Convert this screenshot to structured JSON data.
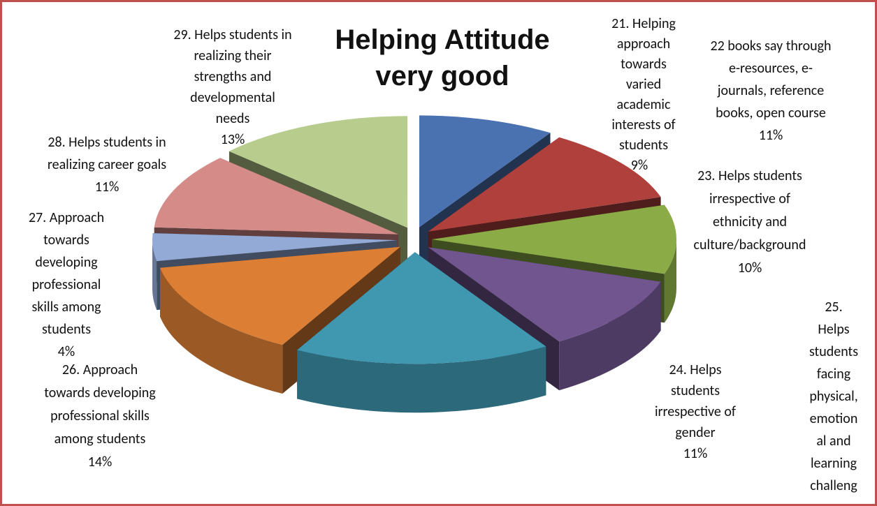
{
  "chart_data": {
    "type": "pie",
    "title": "Helping Attitude very good",
    "categories": [
      [
        "21. Helping",
        "approach",
        "towards",
        "varied",
        "academic",
        "interests of",
        "students"
      ],
      [
        "22 books say through",
        "e-resources, e-",
        "journals, reference",
        "books, open course"
      ],
      [
        "23. Helps students",
        "irrespective of",
        "ethnicity and",
        "culture/background"
      ],
      [
        "24. Helps",
        "students",
        "irrespective of",
        "gender"
      ],
      [
        "25.",
        "Helps",
        "students",
        "facing",
        "physical,",
        "emotion",
        "al and",
        "learning",
        "challeng"
      ],
      [
        "26. Approach",
        "towards developing",
        "professional skills",
        "among students"
      ],
      [
        "27. Approach",
        "towards",
        "developing",
        "professional",
        "skills among",
        "students"
      ],
      [
        "28. Helps students in",
        "realizing career goals"
      ],
      [
        "29. Helps students in",
        "realizing their",
        "strengths and",
        "developmental",
        "needs"
      ]
    ],
    "values": [
      9,
      11,
      10,
      11,
      17,
      14,
      4,
      11,
      13
    ],
    "value_labels": [
      "9%",
      "11%",
      "10%",
      "11%",
      null,
      "14%",
      "4%",
      "11%",
      "13%"
    ],
    "colors": [
      "#4a72b0",
      "#b0403c",
      "#8aab45",
      "#70558f",
      "#3f97b0",
      "#dc7f35",
      "#93a9d6",
      "#d58c89",
      "#b8cc8d"
    ]
  }
}
